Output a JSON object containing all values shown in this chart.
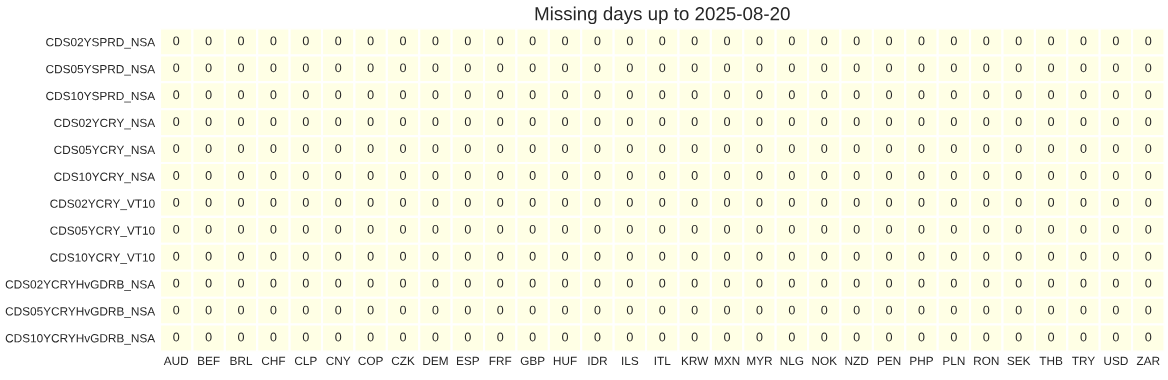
{
  "chart_data": {
    "type": "heatmap",
    "title": "Missing days up to 2025-08-20",
    "categories": [
      "AUD",
      "BEF",
      "BRL",
      "CHF",
      "CLP",
      "CNY",
      "COP",
      "CZK",
      "DEM",
      "ESP",
      "FRF",
      "GBP",
      "HUF",
      "IDR",
      "ILS",
      "ITL",
      "KRW",
      "MXN",
      "MYR",
      "NLG",
      "NOK",
      "NZD",
      "PEN",
      "PHP",
      "PLN",
      "RON",
      "SEK",
      "THB",
      "TRY",
      "USD",
      "ZAR"
    ],
    "y_categories": [
      "CDS02YSPRD_NSA",
      "CDS05YSPRD_NSA",
      "CDS10YSPRD_NSA",
      "CDS02YCRY_NSA",
      "CDS05YCRY_NSA",
      "CDS10YCRY_NSA",
      "CDS02YCRY_VT10",
      "CDS05YCRY_VT10",
      "CDS10YCRY_VT10",
      "CDS02YCRYHvGDRB_NSA",
      "CDS05YCRYHvGDRB_NSA",
      "CDS10YCRYHvGDRB_NSA"
    ],
    "cells": [
      [
        0,
        0,
        0,
        0,
        0,
        0,
        0,
        0,
        0,
        0,
        0,
        0,
        0,
        0,
        0,
        0,
        0,
        0,
        0,
        0,
        0,
        0,
        0,
        0,
        0,
        0,
        0,
        0,
        0,
        0,
        0
      ],
      [
        0,
        0,
        0,
        0,
        0,
        0,
        0,
        0,
        0,
        0,
        0,
        0,
        0,
        0,
        0,
        0,
        0,
        0,
        0,
        0,
        0,
        0,
        0,
        0,
        0,
        0,
        0,
        0,
        0,
        0,
        0
      ],
      [
        0,
        0,
        0,
        0,
        0,
        0,
        0,
        0,
        0,
        0,
        0,
        0,
        0,
        0,
        0,
        0,
        0,
        0,
        0,
        0,
        0,
        0,
        0,
        0,
        0,
        0,
        0,
        0,
        0,
        0,
        0
      ],
      [
        0,
        0,
        0,
        0,
        0,
        0,
        0,
        0,
        0,
        0,
        0,
        0,
        0,
        0,
        0,
        0,
        0,
        0,
        0,
        0,
        0,
        0,
        0,
        0,
        0,
        0,
        0,
        0,
        0,
        0,
        0
      ],
      [
        0,
        0,
        0,
        0,
        0,
        0,
        0,
        0,
        0,
        0,
        0,
        0,
        0,
        0,
        0,
        0,
        0,
        0,
        0,
        0,
        0,
        0,
        0,
        0,
        0,
        0,
        0,
        0,
        0,
        0,
        0
      ],
      [
        0,
        0,
        0,
        0,
        0,
        0,
        0,
        0,
        0,
        0,
        0,
        0,
        0,
        0,
        0,
        0,
        0,
        0,
        0,
        0,
        0,
        0,
        0,
        0,
        0,
        0,
        0,
        0,
        0,
        0,
        0
      ],
      [
        0,
        0,
        0,
        0,
        0,
        0,
        0,
        0,
        0,
        0,
        0,
        0,
        0,
        0,
        0,
        0,
        0,
        0,
        0,
        0,
        0,
        0,
        0,
        0,
        0,
        0,
        0,
        0,
        0,
        0,
        0
      ],
      [
        0,
        0,
        0,
        0,
        0,
        0,
        0,
        0,
        0,
        0,
        0,
        0,
        0,
        0,
        0,
        0,
        0,
        0,
        0,
        0,
        0,
        0,
        0,
        0,
        0,
        0,
        0,
        0,
        0,
        0,
        0
      ],
      [
        0,
        0,
        0,
        0,
        0,
        0,
        0,
        0,
        0,
        0,
        0,
        0,
        0,
        0,
        0,
        0,
        0,
        0,
        0,
        0,
        0,
        0,
        0,
        0,
        0,
        0,
        0,
        0,
        0,
        0,
        0
      ],
      [
        0,
        0,
        0,
        0,
        0,
        0,
        0,
        0,
        0,
        0,
        0,
        0,
        0,
        0,
        0,
        0,
        0,
        0,
        0,
        0,
        0,
        0,
        0,
        0,
        0,
        0,
        0,
        0,
        0,
        0,
        0
      ],
      [
        0,
        0,
        0,
        0,
        0,
        0,
        0,
        0,
        0,
        0,
        0,
        0,
        0,
        0,
        0,
        0,
        0,
        0,
        0,
        0,
        0,
        0,
        0,
        0,
        0,
        0,
        0,
        0,
        0,
        0,
        0
      ],
      [
        0,
        0,
        0,
        0,
        0,
        0,
        0,
        0,
        0,
        0,
        0,
        0,
        0,
        0,
        0,
        0,
        0,
        0,
        0,
        0,
        0,
        0,
        0,
        0,
        0,
        0,
        0,
        0,
        0,
        0,
        0
      ]
    ],
    "color": "#ffffe5",
    "data_labels": true,
    "grid": false
  }
}
